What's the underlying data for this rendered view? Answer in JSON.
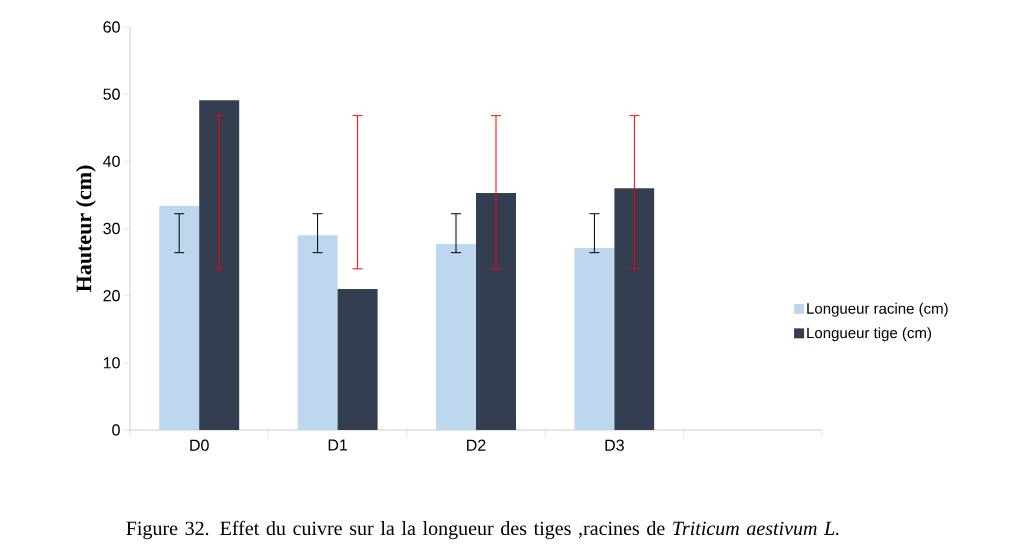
{
  "chart_data": {
    "type": "bar",
    "title": "Figure 32. Effet du cuivre sur la la longueur des tiges ,racines de *Triticum aestivum L.*",
    "ylabel": "Hauteur (cm)",
    "categories": [
      "D0",
      "D1",
      "D2",
      "D3",
      null
    ],
    "series": [
      {
        "name": "Longueur racine (cm)",
        "color": "#bdd7ee",
        "values": [
          33.4,
          29.0,
          27.7,
          27.1,
          null
        ],
        "errors": [
          [
            26.4,
            32.2
          ],
          [
            26.4,
            32.2
          ],
          [
            26.4,
            32.2
          ],
          [
            26.4,
            32.2
          ],
          null
        ]
      },
      {
        "name": "Longueur tige (cm)",
        "color": "#333f50",
        "values": [
          49.1,
          21.0,
          35.3,
          36.0,
          null
        ],
        "errors": [
          [
            24.0,
            46.8
          ],
          [
            24.0,
            46.8
          ],
          [
            24.0,
            46.8
          ],
          [
            24.0,
            46.8
          ],
          null
        ]
      }
    ],
    "ylim": [
      0,
      60
    ],
    "yticks": [
      0,
      10,
      20,
      30,
      40,
      50,
      60
    ],
    "grid": false,
    "legend": "right"
  }
}
